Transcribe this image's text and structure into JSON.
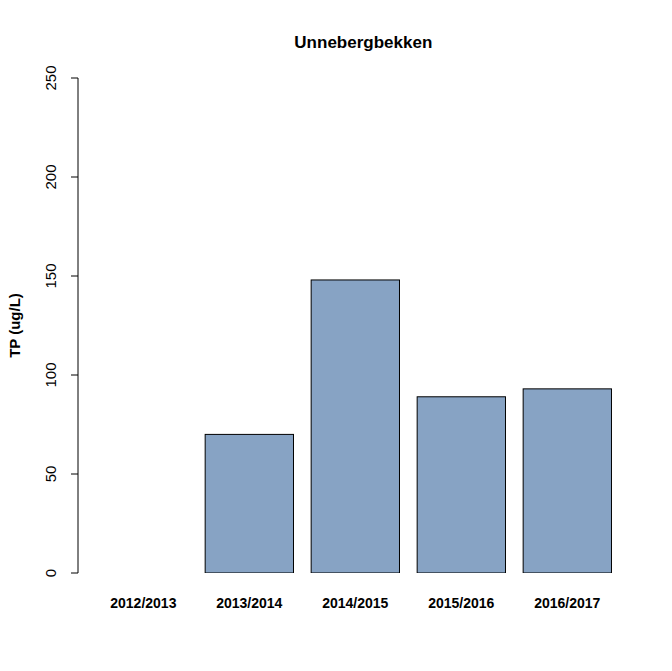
{
  "chart_data": {
    "type": "bar",
    "title": "Unnebergbekken",
    "y_label": "TP (ug/L)",
    "categories": [
      "2012/2013",
      "2013/2014",
      "2014/2015",
      "2015/2016",
      "2016/2017"
    ],
    "values": [
      null,
      70,
      148,
      89,
      93
    ],
    "color": "#87a3c4",
    "ylim": [
      0,
      250
    ],
    "yticks": [
      0,
      50,
      100,
      150,
      200,
      250
    ],
    "grid": false
  }
}
